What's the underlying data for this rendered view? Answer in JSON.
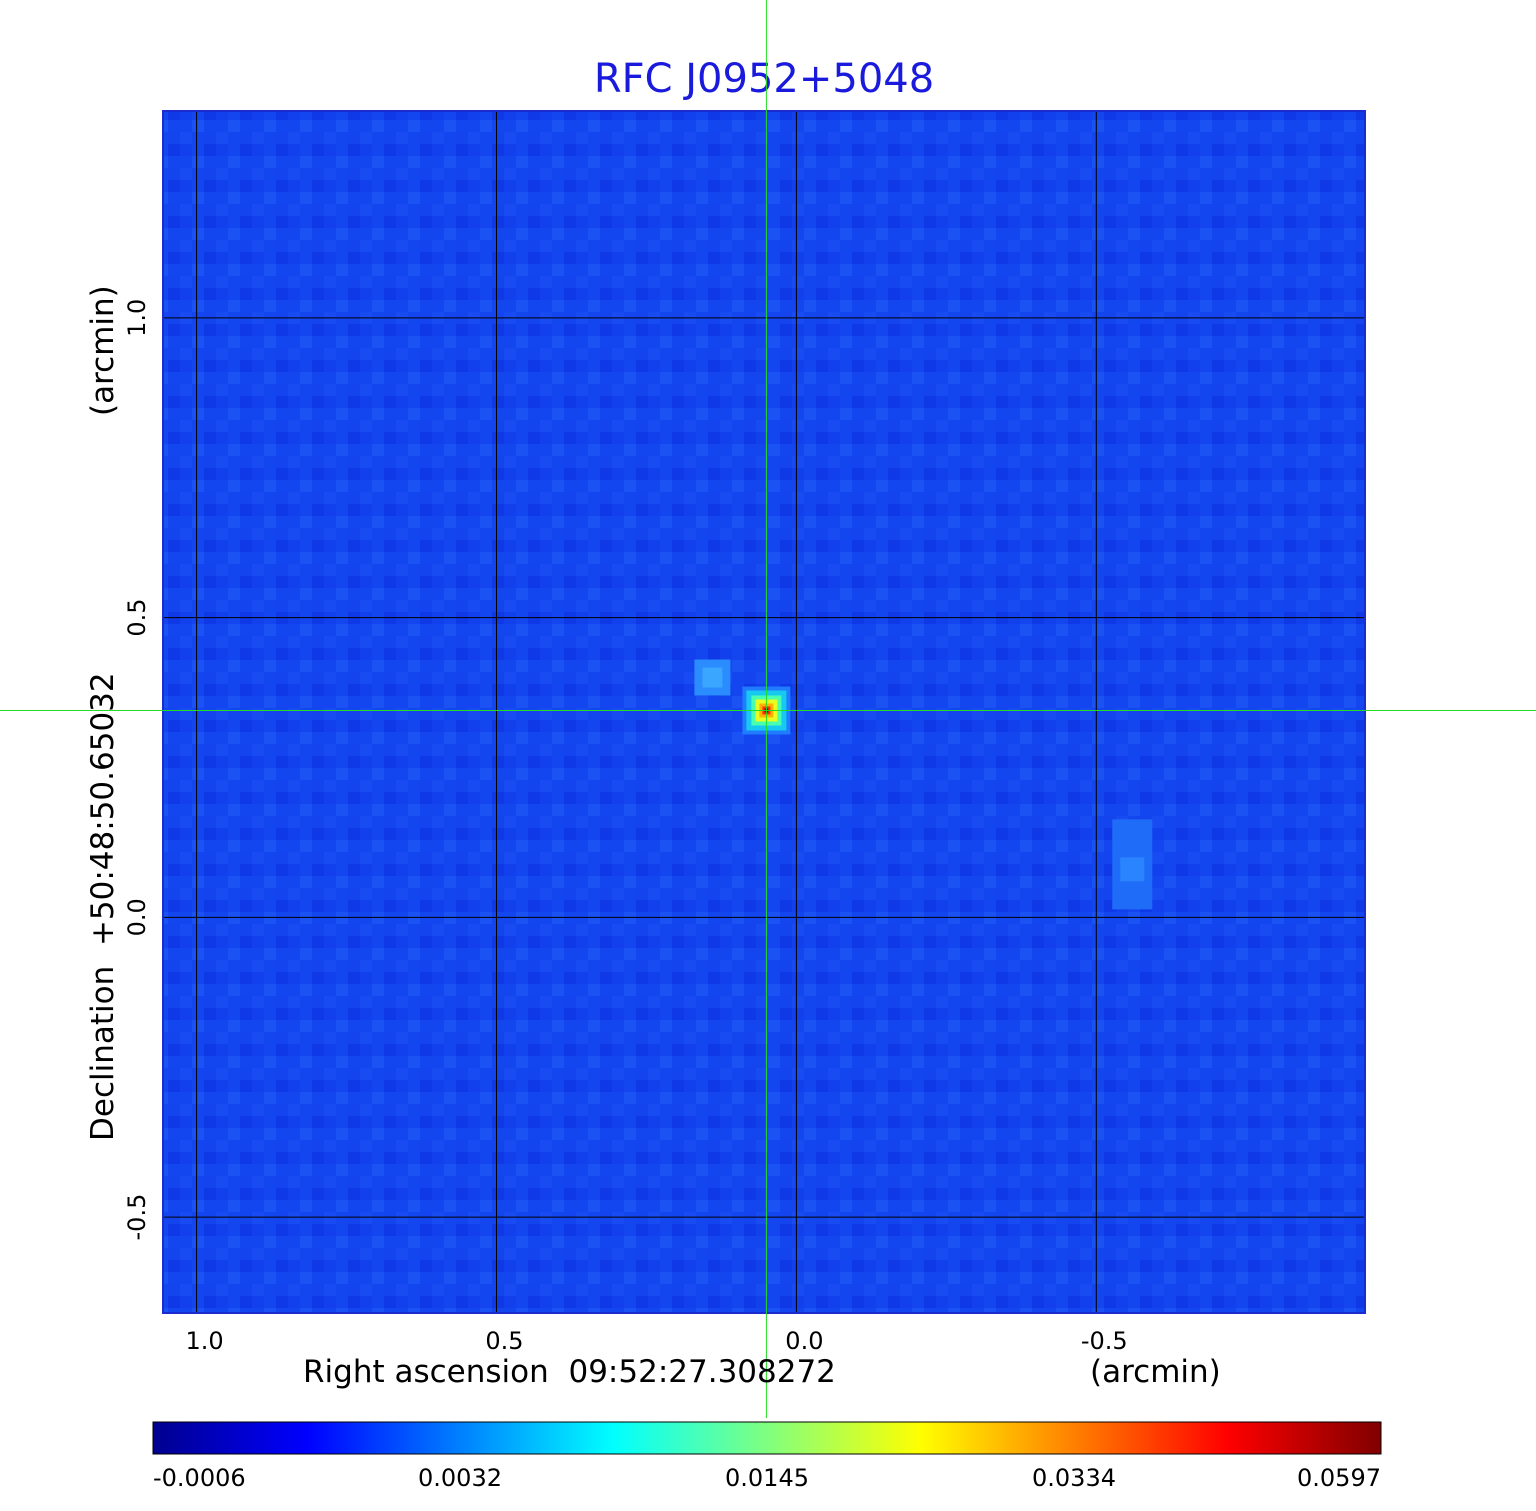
{
  "chart_data": {
    "type": "heatmap",
    "title": "RFC J0952+5048",
    "xlabel": "Right ascension  09:52:27.308272",
    "xunit": "(arcmin)",
    "ylabel": "Declination  +50:48:50.65032",
    "yunit": "(arcmin)",
    "x_ticks": [
      "1.0",
      "0.5",
      "0.0",
      "-0.5"
    ],
    "y_ticks": [
      "1.0",
      "0.5",
      "0.0",
      "-0.5"
    ],
    "x_tick_values": [
      1.0,
      0.5,
      0.0,
      -0.5
    ],
    "y_tick_values": [
      1.0,
      0.5,
      0.0,
      -0.5
    ],
    "xlim": [
      1.056,
      -0.948
    ],
    "ylim": [
      -0.66,
      1.345
    ],
    "grid": true,
    "crosshair": {
      "x": 0.05,
      "y": 0.345
    },
    "peak": {
      "x": 0.05,
      "y": 0.345
    },
    "features": [
      {
        "x": 0.14,
        "y": 0.4,
        "level": 0.006
      },
      {
        "x": -0.56,
        "y": 0.08,
        "level": 0.0025
      }
    ],
    "colorbar_ticks": [
      "-0.0006",
      "0.0032",
      "0.0145",
      "0.0334",
      "0.0597"
    ],
    "colors": {
      "title": "#1a1adc",
      "crosshair": "#22dd22",
      "grid": "#000000",
      "background_map": "#1446f0"
    }
  }
}
